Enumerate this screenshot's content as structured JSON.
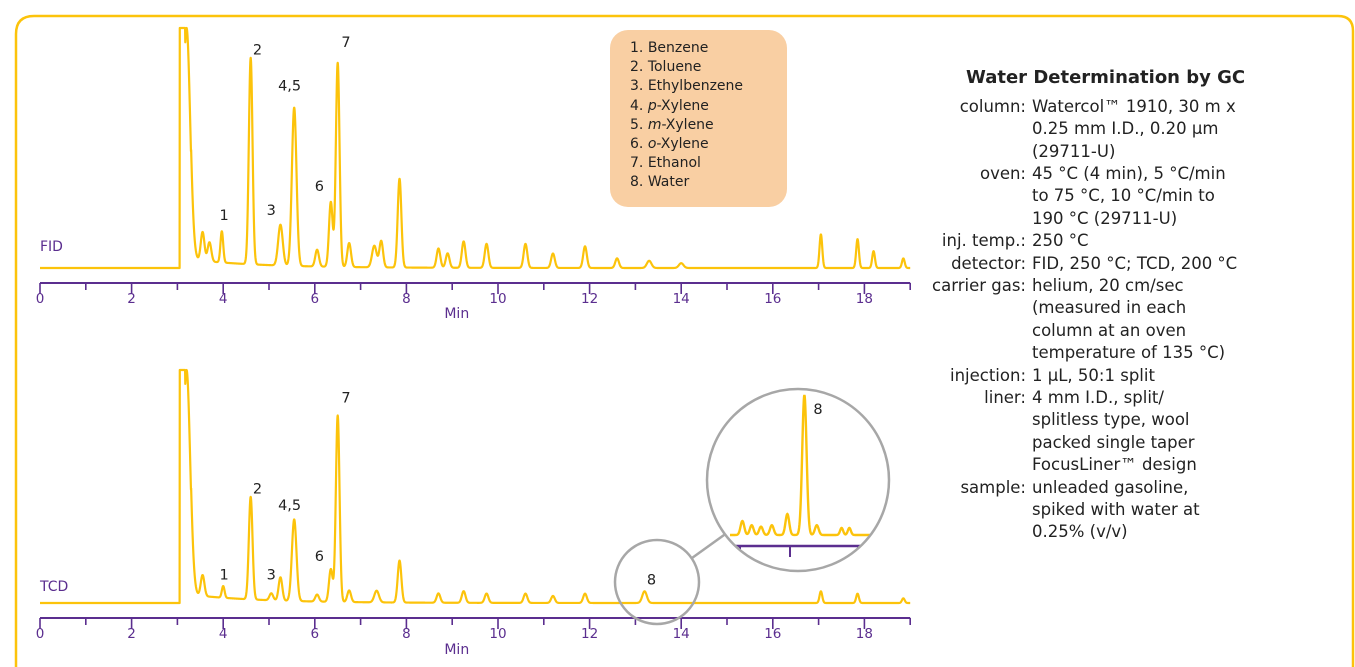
{
  "colors": {
    "trace": "#fcc30b",
    "axis": "#5b2e8f",
    "frame": "#fcc30b",
    "legend_bg": "#f9cfa3",
    "zoom_circle": "#a7a7a7"
  },
  "chart_data": [
    {
      "type": "line",
      "detector_label": "FID",
      "xlabel": "Min",
      "xlim": [
        0,
        19
      ],
      "xticks": [
        0,
        2,
        4,
        6,
        8,
        10,
        12,
        14,
        16,
        18
      ],
      "baseline_start": 3.05,
      "peaks": [
        {
          "x": 3.2,
          "y": 1.0,
          "w": 0.08
        },
        {
          "x": 3.55,
          "y": 0.12,
          "w": 0.04
        },
        {
          "x": 3.7,
          "y": 0.08,
          "w": 0.04
        },
        {
          "x": 3.97,
          "y": 0.13,
          "w": 0.03
        },
        {
          "x": 4.6,
          "y": 0.86,
          "w": 0.04
        },
        {
          "x": 5.25,
          "y": 0.17,
          "w": 0.05
        },
        {
          "x": 5.55,
          "y": 0.66,
          "w": 0.05
        },
        {
          "x": 6.05,
          "y": 0.07,
          "w": 0.04
        },
        {
          "x": 6.35,
          "y": 0.27,
          "w": 0.04
        },
        {
          "x": 6.5,
          "y": 0.85,
          "w": 0.04
        },
        {
          "x": 6.75,
          "y": 0.1,
          "w": 0.04
        },
        {
          "x": 7.3,
          "y": 0.09,
          "w": 0.05
        },
        {
          "x": 7.45,
          "y": 0.11,
          "w": 0.04
        },
        {
          "x": 7.85,
          "y": 0.37,
          "w": 0.04
        },
        {
          "x": 8.7,
          "y": 0.08,
          "w": 0.04
        },
        {
          "x": 8.9,
          "y": 0.06,
          "w": 0.04
        },
        {
          "x": 9.25,
          "y": 0.11,
          "w": 0.04
        },
        {
          "x": 9.75,
          "y": 0.1,
          "w": 0.04
        },
        {
          "x": 10.6,
          "y": 0.1,
          "w": 0.04
        },
        {
          "x": 11.2,
          "y": 0.06,
          "w": 0.04
        },
        {
          "x": 11.9,
          "y": 0.09,
          "w": 0.04
        },
        {
          "x": 12.6,
          "y": 0.04,
          "w": 0.04
        },
        {
          "x": 13.3,
          "y": 0.03,
          "w": 0.05
        },
        {
          "x": 14.0,
          "y": 0.02,
          "w": 0.05
        },
        {
          "x": 17.05,
          "y": 0.14,
          "w": 0.03
        },
        {
          "x": 17.85,
          "y": 0.12,
          "w": 0.03
        },
        {
          "x": 18.2,
          "y": 0.07,
          "w": 0.03
        },
        {
          "x": 18.85,
          "y": 0.04,
          "w": 0.03
        }
      ],
      "peak_labels": [
        {
          "text": "1",
          "x": 4.02,
          "y": 0.2
        },
        {
          "text": "2",
          "x": 4.75,
          "y": 0.89
        },
        {
          "text": "3",
          "x": 5.05,
          "y": 0.22
        },
        {
          "text": "4,5",
          "x": 5.45,
          "y": 0.74
        },
        {
          "text": "6",
          "x": 6.1,
          "y": 0.32
        },
        {
          "text": "7",
          "x": 6.68,
          "y": 0.92
        }
      ]
    },
    {
      "type": "line",
      "detector_label": "TCD",
      "xlabel": "Min",
      "xlim": [
        0,
        19
      ],
      "xticks": [
        0,
        2,
        4,
        6,
        8,
        10,
        12,
        14,
        16,
        18
      ],
      "baseline_start": 3.05,
      "peaks": [
        {
          "x": 3.2,
          "y": 1.0,
          "w": 0.08
        },
        {
          "x": 3.55,
          "y": 0.09,
          "w": 0.04
        },
        {
          "x": 4.0,
          "y": 0.05,
          "w": 0.03
        },
        {
          "x": 4.6,
          "y": 0.44,
          "w": 0.04
        },
        {
          "x": 5.05,
          "y": 0.03,
          "w": 0.04
        },
        {
          "x": 5.25,
          "y": 0.1,
          "w": 0.04
        },
        {
          "x": 5.55,
          "y": 0.35,
          "w": 0.05
        },
        {
          "x": 6.05,
          "y": 0.03,
          "w": 0.04
        },
        {
          "x": 6.35,
          "y": 0.14,
          "w": 0.04
        },
        {
          "x": 6.5,
          "y": 0.8,
          "w": 0.04
        },
        {
          "x": 6.75,
          "y": 0.05,
          "w": 0.04
        },
        {
          "x": 7.35,
          "y": 0.05,
          "w": 0.05
        },
        {
          "x": 7.85,
          "y": 0.18,
          "w": 0.04
        },
        {
          "x": 8.7,
          "y": 0.04,
          "w": 0.04
        },
        {
          "x": 9.25,
          "y": 0.05,
          "w": 0.04
        },
        {
          "x": 9.75,
          "y": 0.04,
          "w": 0.04
        },
        {
          "x": 10.6,
          "y": 0.04,
          "w": 0.04
        },
        {
          "x": 11.2,
          "y": 0.03,
          "w": 0.04
        },
        {
          "x": 11.9,
          "y": 0.04,
          "w": 0.04
        },
        {
          "x": 13.2,
          "y": 0.05,
          "w": 0.05
        },
        {
          "x": 17.05,
          "y": 0.05,
          "w": 0.03
        },
        {
          "x": 17.85,
          "y": 0.04,
          "w": 0.03
        },
        {
          "x": 18.85,
          "y": 0.02,
          "w": 0.03
        }
      ],
      "peak_labels": [
        {
          "text": "1",
          "x": 4.02,
          "y": 0.1
        },
        {
          "text": "2",
          "x": 4.75,
          "y": 0.47
        },
        {
          "text": "3",
          "x": 5.05,
          "y": 0.1
        },
        {
          "text": "4,5",
          "x": 5.45,
          "y": 0.4
        },
        {
          "text": "6",
          "x": 6.1,
          "y": 0.18
        },
        {
          "text": "7",
          "x": 6.68,
          "y": 0.86
        },
        {
          "text": "8",
          "x": 13.35,
          "y": 0.08
        }
      ],
      "inset": {
        "peak_label": "8",
        "peaks": [
          {
            "x": 0.08,
            "y": 0.1,
            "w": 0.012
          },
          {
            "x": 0.14,
            "y": 0.07,
            "w": 0.012
          },
          {
            "x": 0.2,
            "y": 0.06,
            "w": 0.012
          },
          {
            "x": 0.27,
            "y": 0.07,
            "w": 0.012
          },
          {
            "x": 0.37,
            "y": 0.15,
            "w": 0.012
          },
          {
            "x": 0.48,
            "y": 1.0,
            "w": 0.014
          },
          {
            "x": 0.56,
            "y": 0.07,
            "w": 0.012
          },
          {
            "x": 0.72,
            "y": 0.05,
            "w": 0.01
          },
          {
            "x": 0.77,
            "y": 0.05,
            "w": 0.01
          }
        ]
      }
    }
  ],
  "legend": [
    {
      "num": "1.",
      "pre": "",
      "ital": "",
      "rest": "Benzene"
    },
    {
      "num": "2.",
      "pre": "",
      "ital": "",
      "rest": "Toluene"
    },
    {
      "num": "3.",
      "pre": "",
      "ital": "",
      "rest": "Ethylbenzene"
    },
    {
      "num": "4.",
      "pre": "",
      "ital": "p",
      "rest": "-Xylene"
    },
    {
      "num": "5.",
      "pre": "",
      "ital": "m",
      "rest": "-Xylene"
    },
    {
      "num": "6.",
      "pre": "",
      "ital": "o",
      "rest": "-Xylene"
    },
    {
      "num": "7.",
      "pre": "",
      "ital": "",
      "rest": "Ethanol"
    },
    {
      "num": "8.",
      "pre": "",
      "ital": "",
      "rest": "Water"
    }
  ],
  "conditions": {
    "title": "Water Determination by GC",
    "rows": [
      {
        "key": "column:",
        "lines": [
          "Watercol™ 1910, 30 m x",
          "0.25 mm I.D., 0.20 µm",
          "(29711-U)"
        ]
      },
      {
        "key": "oven:",
        "lines": [
          "45 °C (4 min), 5 °C/min",
          "to 75 °C, 10 °C/min to",
          "190 °C (29711-U)"
        ]
      },
      {
        "key": "inj. temp.:",
        "lines": [
          "250 °C"
        ]
      },
      {
        "key": "detector:",
        "lines": [
          "FID, 250 °C; TCD, 200 °C"
        ]
      },
      {
        "key": "carrier gas:",
        "lines": [
          "helium, 20 cm/sec",
          "(measured in each",
          "column at an oven",
          "temperature of 135 °C)"
        ]
      },
      {
        "key": "injection:",
        "lines": [
          "1 µL, 50:1 split"
        ]
      },
      {
        "key": "liner:",
        "lines": [
          "4 mm I.D., split/",
          "splitless type, wool",
          "packed single taper",
          "FocusLiner™ design"
        ]
      },
      {
        "key": "sample:",
        "lines": [
          "unleaded gasoline,",
          "spiked with water at",
          "0.25% (v/v)"
        ]
      }
    ]
  }
}
